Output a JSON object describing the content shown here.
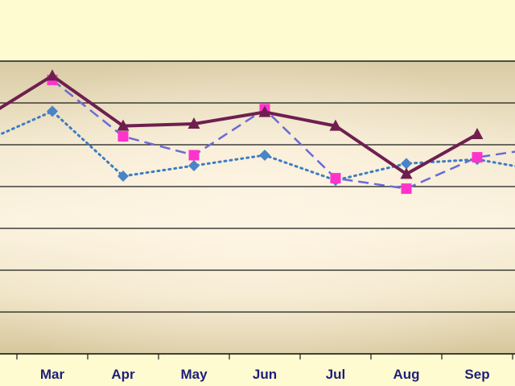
{
  "chart_data": {
    "type": "line",
    "title": "",
    "xlabel": "",
    "ylabel": "",
    "categories": [
      "Mar",
      "Apr",
      "May",
      "Jun",
      "Jul",
      "Aug",
      "Sep"
    ],
    "ylim": [
      0,
      7
    ],
    "grid": true,
    "legend": "none",
    "series": [
      {
        "style": "solid",
        "marker": "triangle",
        "color": "#6e1f4f",
        "lead_in": 5.6,
        "values": [
          6.65,
          5.45,
          5.5,
          5.78,
          5.45,
          4.3,
          5.25
        ],
        "tail_out": null
      },
      {
        "style": "dashed",
        "marker": "square",
        "color": "#6a6ad6",
        "marker_color": "#ff33cc",
        "lead_in": null,
        "values": [
          6.55,
          5.2,
          4.75,
          5.85,
          4.2,
          3.95,
          4.7
        ],
        "tail_out": 4.95
      },
      {
        "style": "dotted",
        "marker": "diamond",
        "color": "#3b7dc4",
        "marker_color": "#4a84c4",
        "lead_in": 5.05,
        "values": [
          5.8,
          4.25,
          4.5,
          4.75,
          4.15,
          4.55,
          4.65
        ],
        "tail_out": 4.35
      }
    ]
  }
}
